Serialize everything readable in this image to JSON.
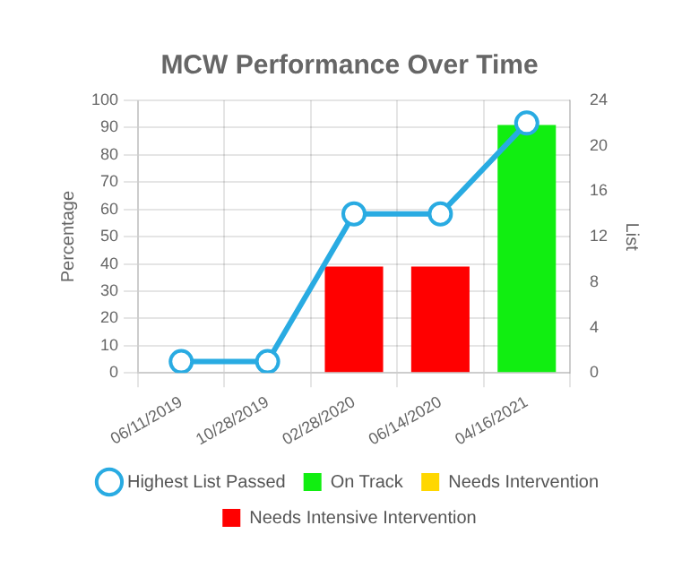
{
  "chart_data": {
    "type": "bar",
    "title": "MCW Performance Over Time",
    "ylabel": "Percentage",
    "y2label": "List",
    "categories": [
      "06/11/2019",
      "10/28/2019",
      "02/28/2020",
      "06/14/2020",
      "04/16/2021"
    ],
    "series": [
      {
        "name": "On Track",
        "color": "#11ee11",
        "values": [
          null,
          null,
          null,
          null,
          91
        ]
      },
      {
        "name": "Needs Intervention",
        "color": "#ffd700",
        "values": [
          null,
          null,
          null,
          null,
          null
        ]
      },
      {
        "name": "Needs Intensive Intervention",
        "color": "#ff0000",
        "values": [
          null,
          null,
          39,
          39,
          null
        ]
      },
      {
        "name": "Highest List Passed",
        "type": "line",
        "axis": "y2",
        "color": "#29abe2",
        "marker": "circle",
        "values": [
          1,
          1,
          14,
          14,
          22
        ]
      }
    ],
    "stacked": true,
    "ylim": [
      0,
      100
    ],
    "yticks": [
      0,
      10,
      20,
      30,
      40,
      50,
      60,
      70,
      80,
      90,
      100
    ],
    "y2lim": [
      0,
      24
    ],
    "y2ticks": [
      0,
      4,
      8,
      12,
      16,
      20,
      24
    ],
    "grid": true,
    "legend": "bottom"
  }
}
